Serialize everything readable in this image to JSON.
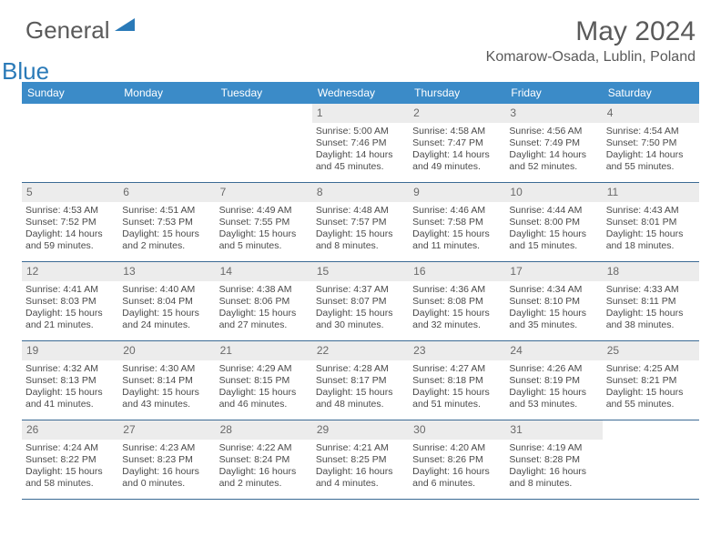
{
  "logo": {
    "text1": "General",
    "text2": "Blue"
  },
  "title": "May 2024",
  "location": "Komarow-Osada, Lublin, Poland",
  "colors": {
    "header_bg": "#3b8bc8",
    "header_text": "#ffffff",
    "rule": "#3b6a94",
    "daynum_bg": "#ececec",
    "body_text": "#4a4a4a",
    "logo_accent": "#2a7ab8"
  },
  "daynames": [
    "Sunday",
    "Monday",
    "Tuesday",
    "Wednesday",
    "Thursday",
    "Friday",
    "Saturday"
  ],
  "weeks": [
    [
      {
        "n": "",
        "sunrise": "",
        "sunset": "",
        "daylight": ""
      },
      {
        "n": "",
        "sunrise": "",
        "sunset": "",
        "daylight": ""
      },
      {
        "n": "",
        "sunrise": "",
        "sunset": "",
        "daylight": ""
      },
      {
        "n": "1",
        "sunrise": "Sunrise: 5:00 AM",
        "sunset": "Sunset: 7:46 PM",
        "daylight": "Daylight: 14 hours and 45 minutes."
      },
      {
        "n": "2",
        "sunrise": "Sunrise: 4:58 AM",
        "sunset": "Sunset: 7:47 PM",
        "daylight": "Daylight: 14 hours and 49 minutes."
      },
      {
        "n": "3",
        "sunrise": "Sunrise: 4:56 AM",
        "sunset": "Sunset: 7:49 PM",
        "daylight": "Daylight: 14 hours and 52 minutes."
      },
      {
        "n": "4",
        "sunrise": "Sunrise: 4:54 AM",
        "sunset": "Sunset: 7:50 PM",
        "daylight": "Daylight: 14 hours and 55 minutes."
      }
    ],
    [
      {
        "n": "5",
        "sunrise": "Sunrise: 4:53 AM",
        "sunset": "Sunset: 7:52 PM",
        "daylight": "Daylight: 14 hours and 59 minutes."
      },
      {
        "n": "6",
        "sunrise": "Sunrise: 4:51 AM",
        "sunset": "Sunset: 7:53 PM",
        "daylight": "Daylight: 15 hours and 2 minutes."
      },
      {
        "n": "7",
        "sunrise": "Sunrise: 4:49 AM",
        "sunset": "Sunset: 7:55 PM",
        "daylight": "Daylight: 15 hours and 5 minutes."
      },
      {
        "n": "8",
        "sunrise": "Sunrise: 4:48 AM",
        "sunset": "Sunset: 7:57 PM",
        "daylight": "Daylight: 15 hours and 8 minutes."
      },
      {
        "n": "9",
        "sunrise": "Sunrise: 4:46 AM",
        "sunset": "Sunset: 7:58 PM",
        "daylight": "Daylight: 15 hours and 11 minutes."
      },
      {
        "n": "10",
        "sunrise": "Sunrise: 4:44 AM",
        "sunset": "Sunset: 8:00 PM",
        "daylight": "Daylight: 15 hours and 15 minutes."
      },
      {
        "n": "11",
        "sunrise": "Sunrise: 4:43 AM",
        "sunset": "Sunset: 8:01 PM",
        "daylight": "Daylight: 15 hours and 18 minutes."
      }
    ],
    [
      {
        "n": "12",
        "sunrise": "Sunrise: 4:41 AM",
        "sunset": "Sunset: 8:03 PM",
        "daylight": "Daylight: 15 hours and 21 minutes."
      },
      {
        "n": "13",
        "sunrise": "Sunrise: 4:40 AM",
        "sunset": "Sunset: 8:04 PM",
        "daylight": "Daylight: 15 hours and 24 minutes."
      },
      {
        "n": "14",
        "sunrise": "Sunrise: 4:38 AM",
        "sunset": "Sunset: 8:06 PM",
        "daylight": "Daylight: 15 hours and 27 minutes."
      },
      {
        "n": "15",
        "sunrise": "Sunrise: 4:37 AM",
        "sunset": "Sunset: 8:07 PM",
        "daylight": "Daylight: 15 hours and 30 minutes."
      },
      {
        "n": "16",
        "sunrise": "Sunrise: 4:36 AM",
        "sunset": "Sunset: 8:08 PM",
        "daylight": "Daylight: 15 hours and 32 minutes."
      },
      {
        "n": "17",
        "sunrise": "Sunrise: 4:34 AM",
        "sunset": "Sunset: 8:10 PM",
        "daylight": "Daylight: 15 hours and 35 minutes."
      },
      {
        "n": "18",
        "sunrise": "Sunrise: 4:33 AM",
        "sunset": "Sunset: 8:11 PM",
        "daylight": "Daylight: 15 hours and 38 minutes."
      }
    ],
    [
      {
        "n": "19",
        "sunrise": "Sunrise: 4:32 AM",
        "sunset": "Sunset: 8:13 PM",
        "daylight": "Daylight: 15 hours and 41 minutes."
      },
      {
        "n": "20",
        "sunrise": "Sunrise: 4:30 AM",
        "sunset": "Sunset: 8:14 PM",
        "daylight": "Daylight: 15 hours and 43 minutes."
      },
      {
        "n": "21",
        "sunrise": "Sunrise: 4:29 AM",
        "sunset": "Sunset: 8:15 PM",
        "daylight": "Daylight: 15 hours and 46 minutes."
      },
      {
        "n": "22",
        "sunrise": "Sunrise: 4:28 AM",
        "sunset": "Sunset: 8:17 PM",
        "daylight": "Daylight: 15 hours and 48 minutes."
      },
      {
        "n": "23",
        "sunrise": "Sunrise: 4:27 AM",
        "sunset": "Sunset: 8:18 PM",
        "daylight": "Daylight: 15 hours and 51 minutes."
      },
      {
        "n": "24",
        "sunrise": "Sunrise: 4:26 AM",
        "sunset": "Sunset: 8:19 PM",
        "daylight": "Daylight: 15 hours and 53 minutes."
      },
      {
        "n": "25",
        "sunrise": "Sunrise: 4:25 AM",
        "sunset": "Sunset: 8:21 PM",
        "daylight": "Daylight: 15 hours and 55 minutes."
      }
    ],
    [
      {
        "n": "26",
        "sunrise": "Sunrise: 4:24 AM",
        "sunset": "Sunset: 8:22 PM",
        "daylight": "Daylight: 15 hours and 58 minutes."
      },
      {
        "n": "27",
        "sunrise": "Sunrise: 4:23 AM",
        "sunset": "Sunset: 8:23 PM",
        "daylight": "Daylight: 16 hours and 0 minutes."
      },
      {
        "n": "28",
        "sunrise": "Sunrise: 4:22 AM",
        "sunset": "Sunset: 8:24 PM",
        "daylight": "Daylight: 16 hours and 2 minutes."
      },
      {
        "n": "29",
        "sunrise": "Sunrise: 4:21 AM",
        "sunset": "Sunset: 8:25 PM",
        "daylight": "Daylight: 16 hours and 4 minutes."
      },
      {
        "n": "30",
        "sunrise": "Sunrise: 4:20 AM",
        "sunset": "Sunset: 8:26 PM",
        "daylight": "Daylight: 16 hours and 6 minutes."
      },
      {
        "n": "31",
        "sunrise": "Sunrise: 4:19 AM",
        "sunset": "Sunset: 8:28 PM",
        "daylight": "Daylight: 16 hours and 8 minutes."
      },
      {
        "n": "",
        "sunrise": "",
        "sunset": "",
        "daylight": ""
      }
    ]
  ]
}
